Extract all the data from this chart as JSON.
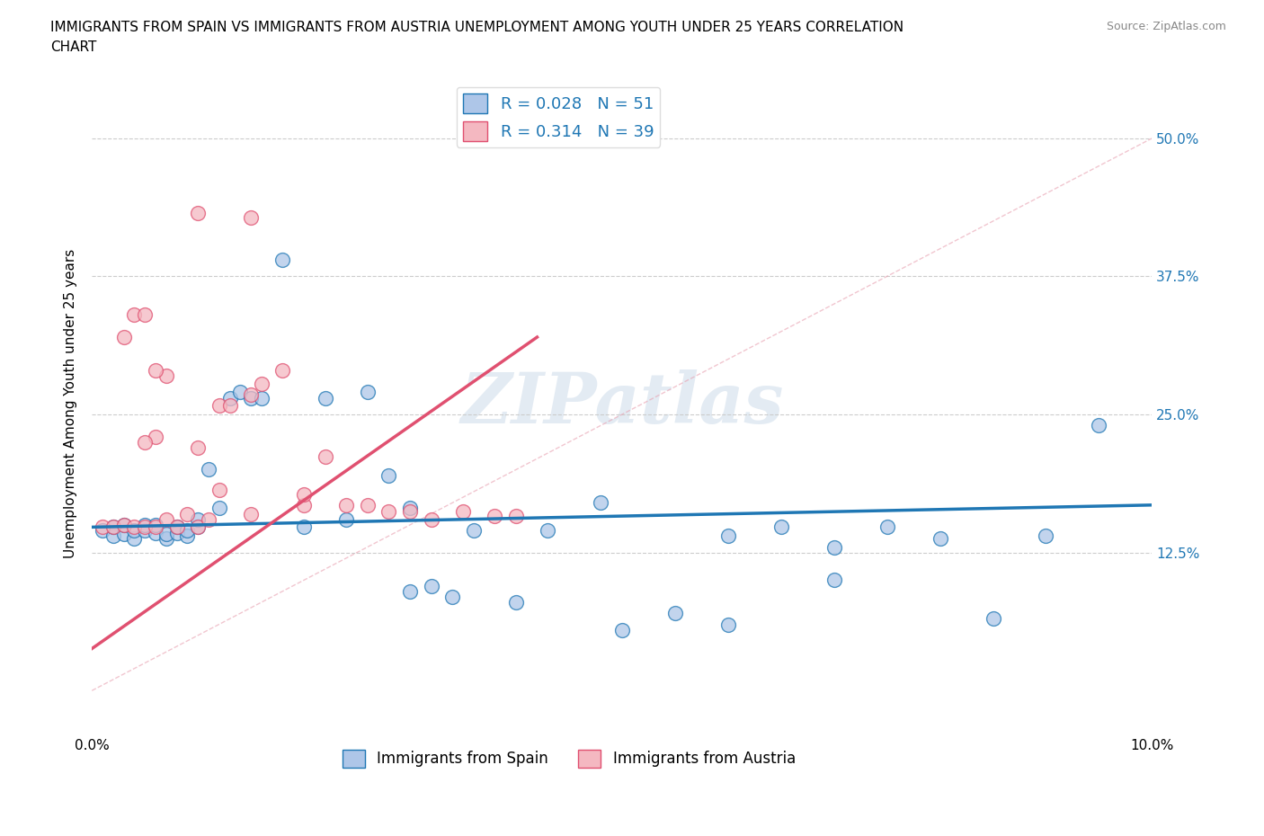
{
  "title": "IMMIGRANTS FROM SPAIN VS IMMIGRANTS FROM AUSTRIA UNEMPLOYMENT AMONG YOUTH UNDER 25 YEARS CORRELATION\nCHART",
  "source": "Source: ZipAtlas.com",
  "ylabel": "Unemployment Among Youth under 25 years",
  "xlim": [
    0.0,
    0.1
  ],
  "ylim": [
    -0.04,
    0.56
  ],
  "yticks": [
    0.0,
    0.125,
    0.25,
    0.375,
    0.5
  ],
  "ytick_labels": [
    "",
    "12.5%",
    "25.0%",
    "37.5%",
    "50.0%"
  ],
  "xticks": [
    0.0,
    0.02,
    0.04,
    0.06,
    0.08,
    0.1
  ],
  "xtick_labels": [
    "0.0%",
    "",
    "",
    "",
    "",
    "10.0%"
  ],
  "legend_r_spain": "R = 0.028",
  "legend_n_spain": "N = 51",
  "legend_r_austria": "R = 0.314",
  "legend_n_austria": "N = 39",
  "color_spain": "#aec6e8",
  "color_austria": "#f4b8c1",
  "trendline_spain": "#1f77b4",
  "trendline_austria": "#e05070",
  "watermark": "ZIPatlas",
  "background_color": "#ffffff",
  "spain_x": [
    0.001,
    0.002,
    0.002,
    0.003,
    0.003,
    0.004,
    0.004,
    0.005,
    0.005,
    0.006,
    0.006,
    0.007,
    0.007,
    0.008,
    0.008,
    0.009,
    0.009,
    0.01,
    0.01,
    0.011,
    0.012,
    0.013,
    0.014,
    0.015,
    0.016,
    0.018,
    0.02,
    0.022,
    0.024,
    0.026,
    0.028,
    0.03,
    0.032,
    0.034,
    0.036,
    0.04,
    0.043,
    0.05,
    0.055,
    0.06,
    0.065,
    0.07,
    0.075,
    0.08,
    0.085,
    0.09,
    0.095,
    0.03,
    0.048,
    0.06,
    0.07
  ],
  "spain_y": [
    0.145,
    0.14,
    0.148,
    0.142,
    0.15,
    0.138,
    0.145,
    0.145,
    0.15,
    0.143,
    0.15,
    0.138,
    0.142,
    0.143,
    0.148,
    0.14,
    0.145,
    0.148,
    0.155,
    0.2,
    0.165,
    0.265,
    0.27,
    0.265,
    0.265,
    0.39,
    0.148,
    0.265,
    0.155,
    0.27,
    0.195,
    0.09,
    0.095,
    0.085,
    0.145,
    0.08,
    0.145,
    0.055,
    0.07,
    0.14,
    0.148,
    0.13,
    0.148,
    0.138,
    0.065,
    0.14,
    0.24,
    0.165,
    0.17,
    0.06,
    0.1
  ],
  "austria_x": [
    0.001,
    0.002,
    0.003,
    0.003,
    0.004,
    0.004,
    0.005,
    0.005,
    0.006,
    0.006,
    0.007,
    0.008,
    0.009,
    0.01,
    0.011,
    0.012,
    0.013,
    0.015,
    0.016,
    0.018,
    0.02,
    0.022,
    0.024,
    0.026,
    0.028,
    0.03,
    0.032,
    0.035,
    0.038,
    0.04,
    0.015,
    0.01,
    0.007,
    0.006,
    0.005,
    0.015,
    0.01,
    0.012,
    0.02
  ],
  "austria_y": [
    0.148,
    0.148,
    0.15,
    0.32,
    0.34,
    0.148,
    0.34,
    0.148,
    0.148,
    0.23,
    0.155,
    0.148,
    0.16,
    0.148,
    0.155,
    0.258,
    0.258,
    0.268,
    0.278,
    0.29,
    0.168,
    0.212,
    0.168,
    0.168,
    0.162,
    0.162,
    0.155,
    0.162,
    0.158,
    0.158,
    0.428,
    0.432,
    0.285,
    0.29,
    0.225,
    0.16,
    0.22,
    0.182,
    0.178
  ],
  "spain_trend_x": [
    0.0,
    0.1
  ],
  "spain_trend_y": [
    0.148,
    0.168
  ],
  "austria_trend_x": [
    0.0,
    0.042
  ],
  "austria_trend_y": [
    0.038,
    0.32
  ]
}
